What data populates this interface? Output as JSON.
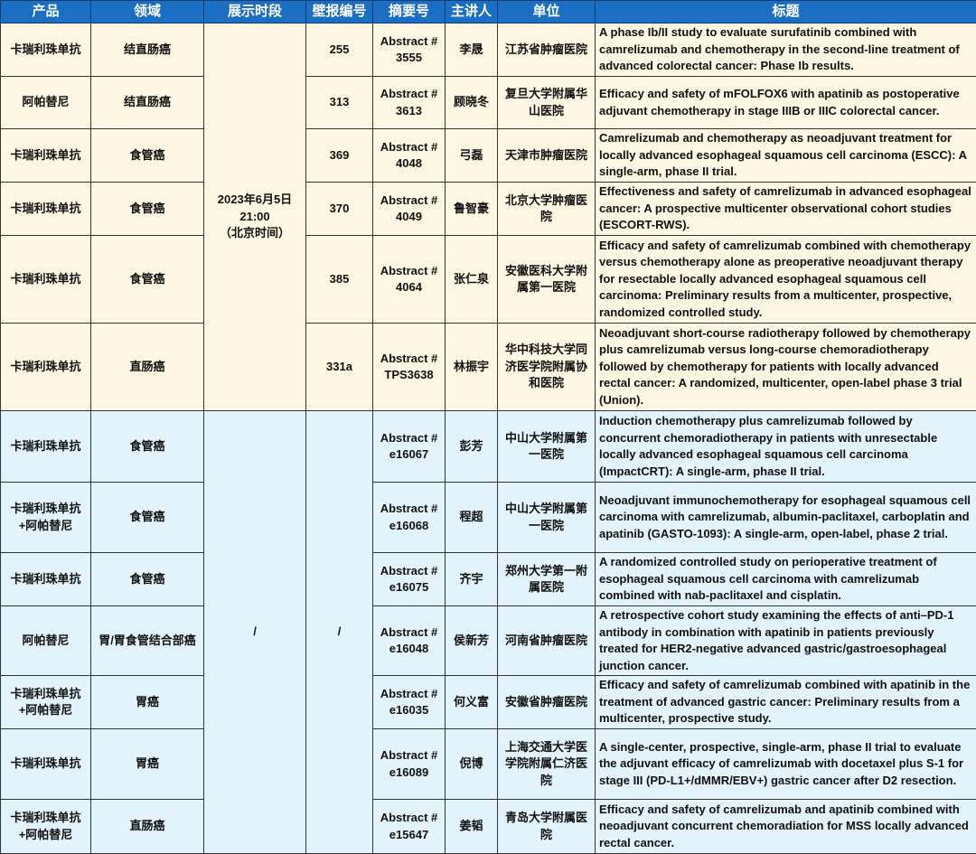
{
  "headers": [
    "产品",
    "领域",
    "展示时段",
    "壁报编号",
    "摘要号",
    "主讲人",
    "单位",
    "标题"
  ],
  "group_a": {
    "time_slot": "2023年6月5日\n21:00\n（北京时间）"
  },
  "group_b": {
    "time_slot": "/",
    "poster_no": "/"
  },
  "colors": {
    "header": "#1b6ec2",
    "group_a_bg": "#fdf6e2",
    "group_b_bg": "#e2f3fc"
  },
  "rows": [
    {
      "product": "卡瑞利珠单抗",
      "field": "结直肠癌",
      "poster": "255",
      "abstract": "Abstract #\n3555",
      "speaker": "李晟",
      "unit": "江苏省肿瘤医院",
      "title": "A phase Ib/II study to evaluate surufatinib combined with camrelizumab and chemotherapy in the second-line treatment of advanced colorectal cancer: Phase Ib results."
    },
    {
      "product": "阿帕替尼",
      "field": "结直肠癌",
      "poster": "313",
      "abstract": "Abstract #\n3613",
      "speaker": "顾晓冬",
      "unit": "复旦大学附属华山医院",
      "title": "Efficacy and safety of mFOLFOX6 with apatinib as postoperative adjuvant chemotherapy in stage IIIB or IIIC colorectal cancer."
    },
    {
      "product": "卡瑞利珠单抗",
      "field": "食管癌",
      "poster": "369",
      "abstract": "Abstract #\n4048",
      "speaker": "弓磊",
      "unit": "天津市肿瘤医院",
      "title": "Camrelizumab and chemotherapy as neoadjuvant treatment for locally advanced esophageal squamous cell carcinoma (ESCC): A single-arm, phase II trial."
    },
    {
      "product": "卡瑞利珠单抗",
      "field": "食管癌",
      "poster": "370",
      "abstract": "Abstract #\n4049",
      "speaker": "鲁智豪",
      "unit": "北京大学肿瘤医院",
      "title": "Effectiveness and safety of camrelizumab in advanced esophageal cancer: A prospective multicenter observational cohort studies (ESCORT-RWS)."
    },
    {
      "product": "卡瑞利珠单抗",
      "field": "食管癌",
      "poster": "385",
      "abstract": "Abstract #\n4064",
      "speaker": "张仁泉",
      "unit": "安徽医科大学附属第一医院",
      "title": "Efficacy and safety of camrelizumab combined with chemotherapy versus chemotherapy alone as preoperative neoadjuvant therapy for resectable locally advanced esophageal squamous cell carcinoma: Preliminary results from a multicenter, prospective, randomized controlled study."
    },
    {
      "product": "卡瑞利珠单抗",
      "field": "直肠癌",
      "poster": "331a",
      "abstract": "Abstract #\nTPS3638",
      "speaker": "林振宇",
      "unit": "华中科技大学同济医学院附属协和医院",
      "title": "Neoadjuvant short-course radiotherapy followed by chemotherapy plus camrelizumab versus long-course chemoradiotherapy followed by chemotherapy for patients with locally advanced rectal cancer: A randomized, multicenter, open-label phase 3 trial (Union)."
    },
    {
      "product": "卡瑞利珠单抗",
      "field": "食管癌",
      "abstract": "Abstract #\ne16067",
      "speaker": "彭芳",
      "unit": "中山大学附属第一医院",
      "title": "Induction chemotherapy plus camrelizumab followed by concurrent chemoradiotherapy in patients with unresectable locally advanced esophageal squamous cell carcinoma (ImpactCRT): A single-arm, phase II trial."
    },
    {
      "product": "卡瑞利珠单抗\n+阿帕替尼",
      "field": "食管癌",
      "abstract": "Abstract #\ne16068",
      "speaker": "程超",
      "unit": "中山大学附属第一医院",
      "title": "Neoadjuvant immunochemotherapy for esophageal squamous cell carcinoma with camrelizumab, albumin-paclitaxel, carboplatin and apatinib (GASTO-1093): A single-arm, open-label, phase 2 trial."
    },
    {
      "product": "卡瑞利珠单抗",
      "field": "食管癌",
      "abstract": "Abstract #\ne16075",
      "speaker": "齐宇",
      "unit": "郑州大学第一附属医院",
      "title": "A randomized controlled study on perioperative treatment of esophageal squamous cell carcinoma with camrelizumab combined with nab-paclitaxel and cisplatin."
    },
    {
      "product": "阿帕替尼",
      "field": "胃/胃食管结合部癌",
      "abstract": "Abstract #\ne16048",
      "speaker": "侯新芳",
      "unit": "河南省肿瘤医院",
      "title": "A retrospective cohort study examining the effects of anti–PD-1 antibody in combination with apatinib in patients previously treated for HER2-negative advanced gastric/gastroesophageal junction cancer."
    },
    {
      "product": "卡瑞利珠单抗\n+阿帕替尼",
      "field": "胃癌",
      "abstract": "Abstract #\ne16035",
      "speaker": "何义富",
      "unit": "安徽省肿瘤医院",
      "title": "Efficacy and safety of camrelizumab combined with apatinib in the treatment of advanced gastric cancer: Preliminary results from a multicenter, prospective study."
    },
    {
      "product": "卡瑞利珠单抗",
      "field": "胃癌",
      "abstract": "Abstract #\ne16089",
      "speaker": "倪博",
      "unit": "上海交通大学医学院附属仁济医院",
      "title": "A single-center, prospective, single-arm, phase II trial to evaluate the adjuvant efficacy of camrelizumab with docetaxel plus S-1 for stage III (PD-L1+/dMMR/EBV+) gastric cancer after D2 resection."
    },
    {
      "product": "卡瑞利珠单抗\n+阿帕替尼",
      "field": "直肠癌",
      "abstract": "Abstract #\ne15647",
      "speaker": "姜韬",
      "unit": "青岛大学附属医院",
      "title": "Efficacy and safety of camrelizumab and apatinib combined with neoadjuvant concurrent chemoradiation for MSS locally advanced rectal cancer."
    }
  ]
}
